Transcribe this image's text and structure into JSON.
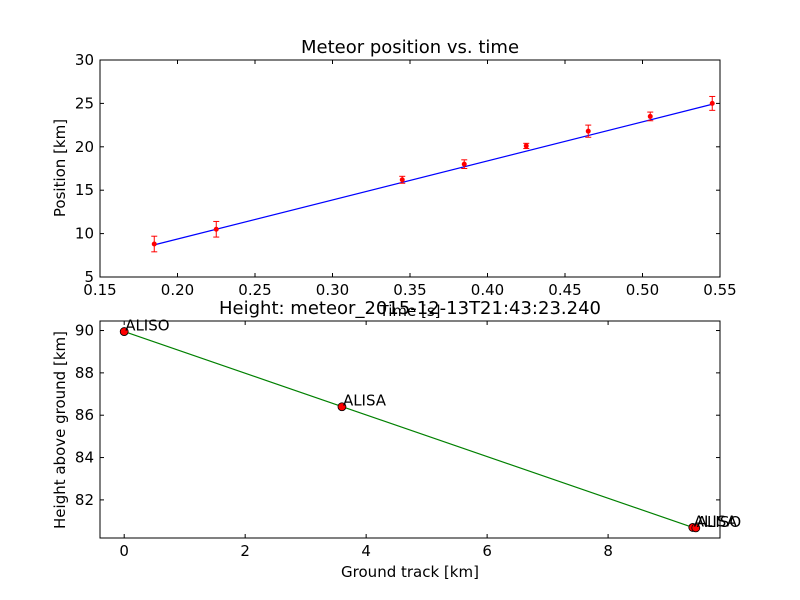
{
  "chart_data": [
    {
      "type": "line",
      "title": "Meteor position vs. time",
      "xlabel": "Time [s]",
      "ylabel": "Position [km]",
      "xlim": [
        0.15,
        0.55
      ],
      "ylim": [
        5,
        30
      ],
      "xticks": [
        "0.15",
        "0.20",
        "0.25",
        "0.30",
        "0.35",
        "0.40",
        "0.45",
        "0.50",
        "0.55"
      ],
      "yticks": [
        "5",
        "10",
        "15",
        "20",
        "25",
        "30"
      ],
      "grid": false,
      "line_color": "#0000ff",
      "point_color": "#ff0000",
      "error_color": "#ff0000",
      "line": {
        "x": [
          0.185,
          0.545
        ],
        "y": [
          8.7,
          24.9
        ]
      },
      "points": [
        {
          "x": 0.185,
          "y": 8.8,
          "err": 0.9
        },
        {
          "x": 0.225,
          "y": 10.5,
          "err": 0.9
        },
        {
          "x": 0.345,
          "y": 16.2,
          "err": 0.4
        },
        {
          "x": 0.385,
          "y": 18.0,
          "err": 0.5
        },
        {
          "x": 0.425,
          "y": 20.1,
          "err": 0.3
        },
        {
          "x": 0.465,
          "y": 21.8,
          "err": 0.7
        },
        {
          "x": 0.505,
          "y": 23.5,
          "err": 0.5
        },
        {
          "x": 0.545,
          "y": 25.0,
          "err": 0.8
        }
      ]
    },
    {
      "type": "line",
      "title": "Height: meteor_2015-12-13T21:43:23.240",
      "xlabel": "Ground track [km]",
      "ylabel": "Height above ground [km]",
      "xlim": [
        -0.4,
        9.85
      ],
      "ylim": [
        80.2,
        90.45
      ],
      "xticks": [
        0,
        2,
        4,
        6,
        8
      ],
      "yticks": [
        82,
        84,
        86,
        88,
        90
      ],
      "grid": false,
      "line_color": "#008000",
      "marker_color": "#ff0000",
      "line": {
        "x": [
          0,
          9.4
        ],
        "y": [
          89.95,
          80.7
        ]
      },
      "points": [
        {
          "x": 0.0,
          "y": 89.95,
          "label": "ALISO"
        },
        {
          "x": 3.6,
          "y": 86.4,
          "label": "ALISA"
        },
        {
          "x": 9.4,
          "y": 80.7,
          "label": "ALISA"
        },
        {
          "x": 9.45,
          "y": 80.68,
          "label": "ALISO"
        }
      ]
    }
  ]
}
